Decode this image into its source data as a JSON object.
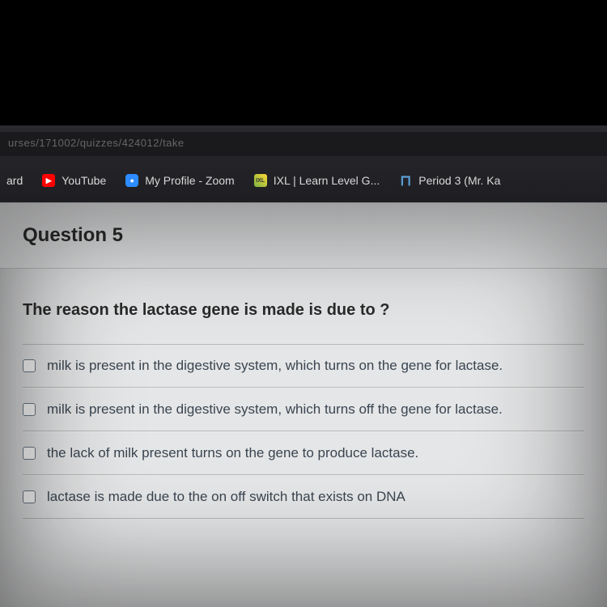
{
  "browser": {
    "url_fragment": "urses/171002/quizzes/424012/take",
    "bookmarks": [
      {
        "label": "ard",
        "icon": null
      },
      {
        "label": "YouTube",
        "icon": "yt"
      },
      {
        "label": "My Profile - Zoom",
        "icon": "zoom"
      },
      {
        "label": "IXL | Learn Level G...",
        "icon": "ixl"
      },
      {
        "label": "Period 3 (Mr. Ka",
        "icon": "period"
      }
    ]
  },
  "quiz": {
    "question_label": "Question 5",
    "question_text": "The reason the lactase gene is made is due to ?",
    "options": [
      "milk is present in the digestive system, which turns on the gene for lactase.",
      "milk is present in the digestive system, which turns off the gene for lactase.",
      "the lack of milk present turns on the gene to produce lactase.",
      "lactase is made due to the on off switch that exists on DNA"
    ]
  },
  "colors": {
    "page_bg": "#e5e6e7",
    "header_bg": "#dcddde",
    "text_primary": "#2a2a2a",
    "text_option": "#3a4550",
    "checkbox_border": "#6a7580"
  }
}
